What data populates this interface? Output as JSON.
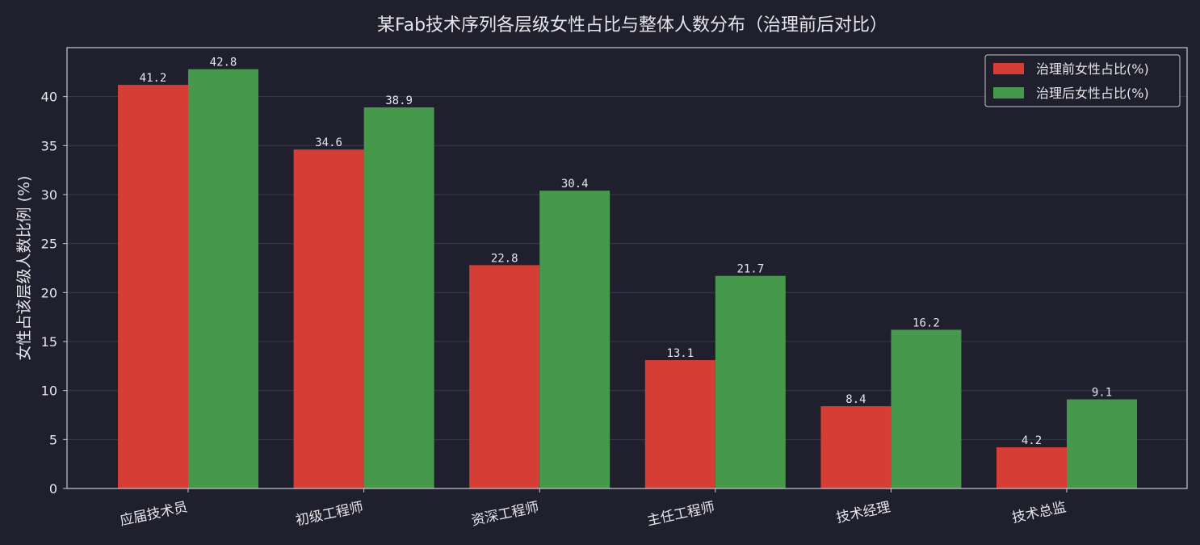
{
  "chart_data": {
    "type": "bar",
    "title": "某Fab技术序列各层级女性占比与整体人数分布（治理前后对比）",
    "xlabel": "",
    "ylabel": "女性占该层级人数比例 (%)",
    "categories": [
      "应届技术员",
      "初级工程师",
      "资深工程师",
      "主任工程师",
      "技术经理",
      "技术总监"
    ],
    "series": [
      {
        "name": "治理前女性占比(%)",
        "color": "#d63d35",
        "values": [
          41.2,
          34.6,
          22.8,
          13.1,
          8.4,
          4.2
        ]
      },
      {
        "name": "治理后女性占比(%)",
        "color": "#46994a",
        "values": [
          42.8,
          38.9,
          30.4,
          21.7,
          16.2,
          9.1
        ]
      }
    ],
    "ylim": [
      0,
      45
    ],
    "yticks": [
      0,
      5,
      10,
      15,
      20,
      25,
      30,
      35,
      40
    ],
    "grid": true,
    "legend": "top-right"
  }
}
